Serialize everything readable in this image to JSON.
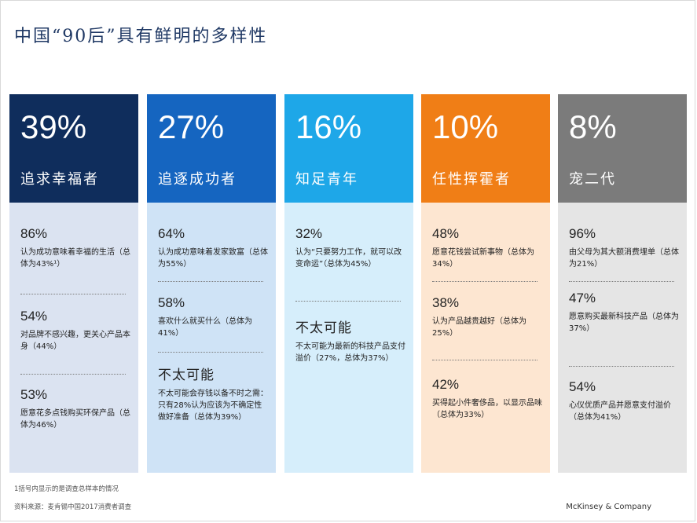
{
  "title": "中国“90后”具有鲜明的多样性",
  "chart_data": {
    "type": "table",
    "columns": [
      {
        "percent": "39%",
        "label": "追求幸福者",
        "header_color": "#0f2d5c",
        "body_color": "#dbe3f1",
        "stats": [
          {
            "value": "86%",
            "desc": "认为成功意味着幸福的生活（总体为43%¹）"
          },
          {
            "value": "54%",
            "desc": "对品牌不感兴趣，更关心产品本身（44%）"
          },
          {
            "value": "53%",
            "desc": "愿意花多点钱购买环保产品（总体为46%）"
          }
        ]
      },
      {
        "percent": "27%",
        "label": "追逐成功者",
        "header_color": "#1565c0",
        "body_color": "#cfe3f6",
        "stats": [
          {
            "value": "64%",
            "desc": "认为成功意味着发家致富（总体为55%）"
          },
          {
            "value": "58%",
            "desc": "喜欢什么就买什么（总体为41%）"
          },
          {
            "value": "不太可能",
            "desc": "不太可能会存钱以备不时之需：只有28%认为应该为不确定性做好准备（总体为39%）"
          }
        ]
      },
      {
        "percent": "16%",
        "label": "知足青年",
        "header_color": "#1ea7e8",
        "body_color": "#d6eefb",
        "stats": [
          {
            "value": "32%",
            "desc": "认为“只要努力工作，就可以改变命运”（总体为45%）"
          },
          {
            "value": "不太可能",
            "desc": "不太可能为最新的科技产品支付溢价（27%，总体为37%）"
          }
        ]
      },
      {
        "percent": "10%",
        "label": "任性挥霍者",
        "header_color": "#f07e16",
        "body_color": "#fde6d1",
        "stats": [
          {
            "value": "48%",
            "desc": "愿意花钱尝试新事物（总体为34%）"
          },
          {
            "value": "38%",
            "desc": "认为产品越贵越好（总体为25%）"
          },
          {
            "value": "42%",
            "desc": "买得起小件奢侈品，以显示品味（总体为33%）"
          }
        ]
      },
      {
        "percent": "8%",
        "label": "宠二代",
        "header_color": "#7b7b7b",
        "body_color": "#e5e5e5",
        "stats": [
          {
            "value": "96%",
            "desc": "由父母为其大额消费埋单（总体为21%）"
          },
          {
            "value": "47%",
            "desc": "愿意购买最新科技产品（总体为37%）"
          },
          {
            "value": "54%",
            "desc": "心仪优质产品并愿意支付溢价（总体为41%）"
          }
        ]
      }
    ]
  },
  "footnotes": {
    "note1": "1括号内显示的是调查总样本的情况",
    "source": "资料来源：麦肯锡中国2017消费者调查",
    "brand": "McKinsey & Company"
  }
}
